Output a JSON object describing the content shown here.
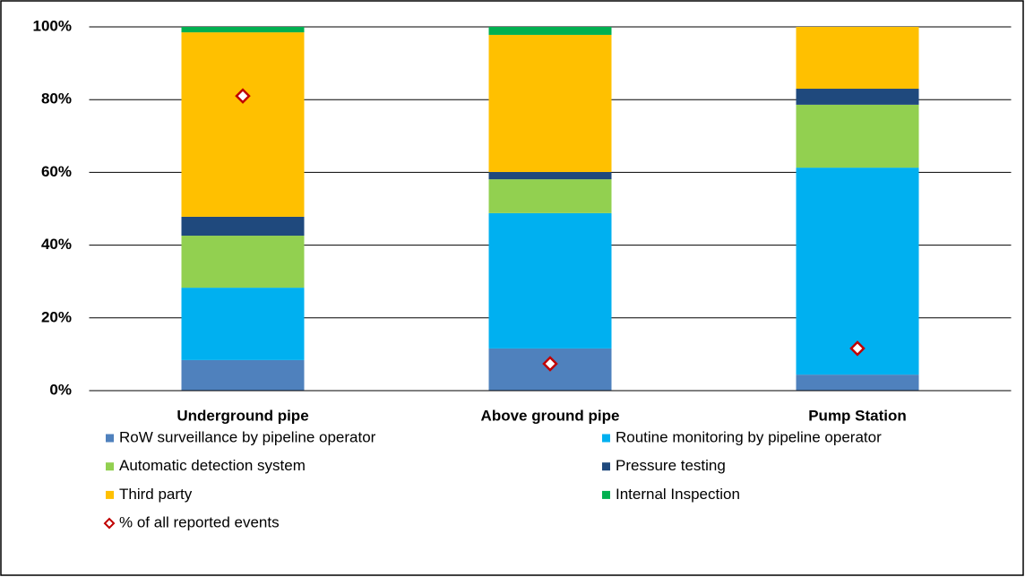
{
  "chart_data": {
    "type": "bar",
    "stacked": true,
    "categories": [
      "Underground pipe",
      "Above ground pipe",
      "Pump Station"
    ],
    "series": [
      {
        "name": "RoW surveillance by pipeline operator",
        "color": "#4f81bd",
        "values": [
          8.4,
          11.6,
          4.4
        ]
      },
      {
        "name": "Routine monitoring by pipeline operator",
        "color": "#00b0f0",
        "values": [
          19.9,
          37.2,
          56.9
        ]
      },
      {
        "name": "Automatic detection system",
        "color": "#92d050",
        "values": [
          14.3,
          9.3,
          17.3
        ]
      },
      {
        "name": "Pressure testing",
        "color": "#1f497d",
        "values": [
          5.2,
          2.0,
          4.4
        ]
      },
      {
        "name": "Third party",
        "color": "#ffc000",
        "values": [
          50.7,
          37.7,
          17.0
        ]
      },
      {
        "name": "Internal Inspection",
        "color": "#00b050",
        "values": [
          1.5,
          2.2,
          0
        ]
      },
      {
        "name": "% of all reported events",
        "color": "#c00000",
        "type": "scatter",
        "marker": "diamond",
        "values": [
          81.0,
          7.4,
          11.6
        ]
      }
    ],
    "ylim": [
      0,
      100
    ],
    "yticks": [
      {
        "value": 0,
        "label": "0%"
      },
      {
        "value": 20,
        "label": "20%"
      },
      {
        "value": 40,
        "label": "40%"
      },
      {
        "value": 60,
        "label": "60%"
      },
      {
        "value": 80,
        "label": "80%"
      },
      {
        "value": 100,
        "label": "100%"
      }
    ],
    "grid": true,
    "legend": "bottom"
  }
}
